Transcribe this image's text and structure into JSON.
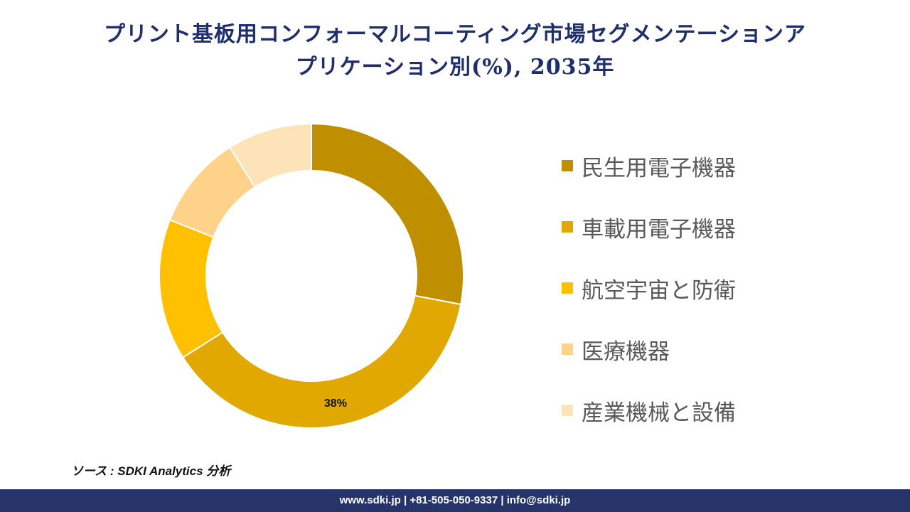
{
  "chart_data": {
    "type": "pie",
    "variant": "donut",
    "title_line1": "プリント基板用コンフォーマルコーティング市場セグメンテーションア",
    "title_line2": "プリケーション別(%), 2035年",
    "categories": [
      "民生用電子機器",
      "車載用電子機器",
      "航空宇宙と防衛",
      "医療機器",
      "産業機械と設備"
    ],
    "values": [
      28,
      38,
      15,
      10,
      9
    ],
    "colors": [
      "#bf8f00",
      "#e0a800",
      "#ffc000",
      "#ffd28a",
      "#fde3b8"
    ],
    "data_labels": [
      "",
      "38%",
      "",
      "",
      ""
    ],
    "legend_position": "right"
  },
  "source": "ソース : SDKI Analytics 分析",
  "footer": "www.sdki.jp | +81-505-050-9337 | info@sdki.jp"
}
